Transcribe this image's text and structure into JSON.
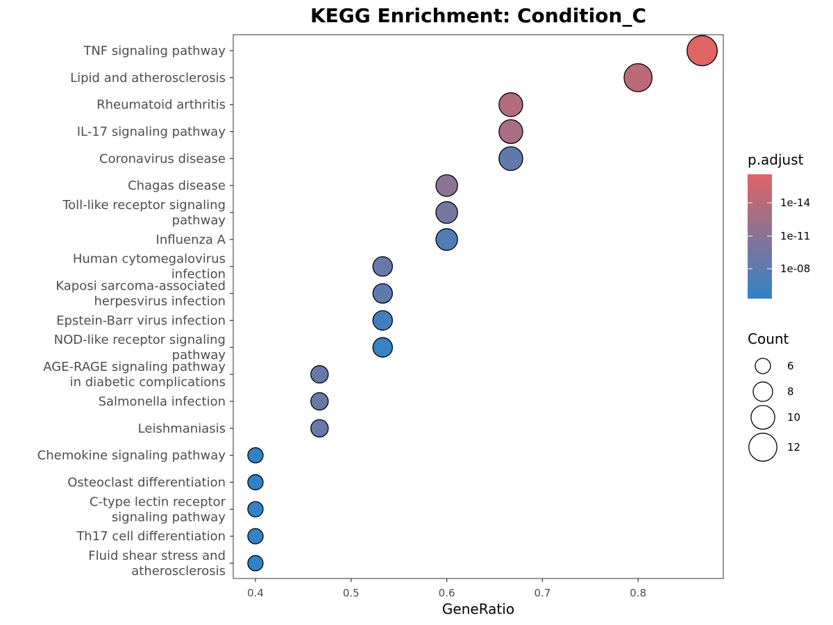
{
  "chart_data": {
    "type": "scatter",
    "title": "KEGG Enrichment: Condition_C",
    "xlabel": "GeneRatio",
    "ylabel": "",
    "xlim": [
      0.38,
      0.89
    ],
    "x_ticks": [
      "0.4",
      "0.5",
      "0.6",
      "0.7",
      "0.8"
    ],
    "color_scale": {
      "title": "p.adjust",
      "low_color": "#3182c7",
      "high_color": "#e06464",
      "tick_labels": [
        "1e-14",
        "1e-11",
        "1e-08"
      ],
      "log_scale": true
    },
    "size_legend": {
      "title": "Count",
      "labels": [
        "6",
        "8",
        "10",
        "12"
      ]
    },
    "points": [
      {
        "term": "TNF signaling pathway",
        "x": 0.867,
        "count": 13,
        "color_level": 1.0
      },
      {
        "term": "Lipid and atherosclerosis",
        "x": 0.8,
        "count": 12,
        "color_level": 0.8
      },
      {
        "term": "Rheumatoid arthritis",
        "x": 0.667,
        "count": 10,
        "color_level": 0.74
      },
      {
        "term": "IL-17 signaling pathway",
        "x": 0.667,
        "count": 10,
        "color_level": 0.68
      },
      {
        "term": "Coronavirus disease",
        "x": 0.667,
        "count": 10,
        "color_level": 0.26
      },
      {
        "term": "Chagas disease",
        "x": 0.6,
        "count": 9,
        "color_level": 0.52
      },
      {
        "term": "Toll-like receptor signaling\npathway",
        "x": 0.6,
        "count": 9,
        "color_level": 0.4
      },
      {
        "term": "Influenza A",
        "x": 0.6,
        "count": 9,
        "color_level": 0.18
      },
      {
        "term": "Human cytomegalovirus\ninfection",
        "x": 0.533,
        "count": 8,
        "color_level": 0.3
      },
      {
        "term": "Kaposi sarcoma-associated\nherpesvirus infection",
        "x": 0.533,
        "count": 8,
        "color_level": 0.26
      },
      {
        "term": "Epstein-Barr virus infection",
        "x": 0.533,
        "count": 8,
        "color_level": 0.1
      },
      {
        "term": "NOD-like receptor signaling\npathway",
        "x": 0.533,
        "count": 8,
        "color_level": 0.04
      },
      {
        "term": "AGE-RAGE signaling pathway\nin diabetic complications",
        "x": 0.467,
        "count": 7,
        "color_level": 0.3
      },
      {
        "term": "Salmonella infection",
        "x": 0.467,
        "count": 7,
        "color_level": 0.3
      },
      {
        "term": "Leishmaniasis",
        "x": 0.467,
        "count": 7,
        "color_level": 0.3
      },
      {
        "term": "Chemokine signaling pathway",
        "x": 0.4,
        "count": 6,
        "color_level": 0.0
      },
      {
        "term": "Osteoclast differentiation",
        "x": 0.4,
        "count": 6,
        "color_level": 0.0
      },
      {
        "term": "C-type lectin receptor\nsignaling pathway",
        "x": 0.4,
        "count": 6,
        "color_level": 0.0
      },
      {
        "term": "Th17 cell differentiation",
        "x": 0.4,
        "count": 6,
        "color_level": 0.0
      },
      {
        "term": "Fluid shear stress and\natherosclerosis",
        "x": 0.4,
        "count": 6,
        "color_level": 0.0
      }
    ]
  }
}
